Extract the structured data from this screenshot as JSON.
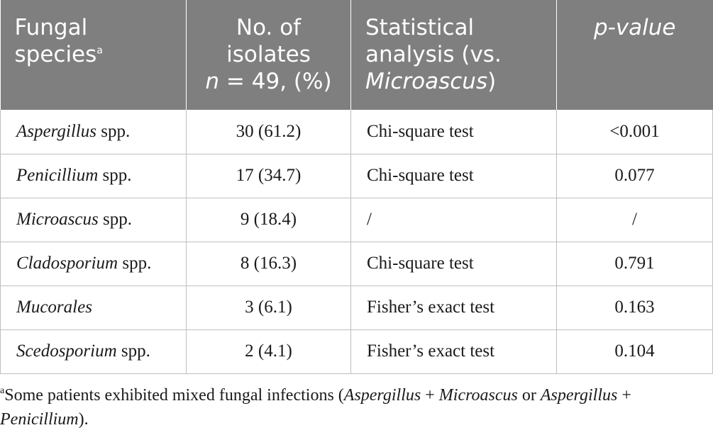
{
  "header": {
    "col1": {
      "text": "Fungal species",
      "sup": "a"
    },
    "col2": {
      "line1": "No. of isolates",
      "n_var": "n",
      "n_rest": " = 49, (%)"
    },
    "col3": {
      "line1": "Statistical analysis (vs. ",
      "italic": "Microascus",
      "close": ")"
    },
    "col4": {
      "text": "p-value"
    }
  },
  "rows": [
    {
      "genus": "Aspergillus",
      "suffix": " spp.",
      "isolates": "30 (61.2)",
      "test": "Chi-square test",
      "p": "<0.001"
    },
    {
      "genus": "Penicillium",
      "suffix": " spp.",
      "isolates": "17 (34.7)",
      "test": "Chi-square test",
      "p": "0.077"
    },
    {
      "genus": "Microascus",
      "suffix": " spp.",
      "isolates": "9 (18.4)",
      "test": "/",
      "p": "/"
    },
    {
      "genus": "Cladosporium",
      "suffix": " spp.",
      "isolates": "8 (16.3)",
      "test": "Chi-square test",
      "p": "0.791"
    },
    {
      "genus": "Mucorales",
      "suffix": "",
      "isolates": "3 (6.1)",
      "test": "Fisher’s exact test",
      "p": "0.163"
    },
    {
      "genus": "Scedosporium",
      "suffix": " spp.",
      "isolates": "2 (4.1)",
      "test": "Fisher’s exact test",
      "p": "0.104"
    }
  ],
  "footnote": {
    "mark": "a",
    "text1": "Some patients exhibited mixed fungal infections (",
    "i1": "Aspergillus",
    "plus1": " + ",
    "i2": "Microascus",
    "or": " or ",
    "i3": "Aspergillus",
    "plus2": " + ",
    "i4": "Penicillium",
    "end": ")."
  }
}
